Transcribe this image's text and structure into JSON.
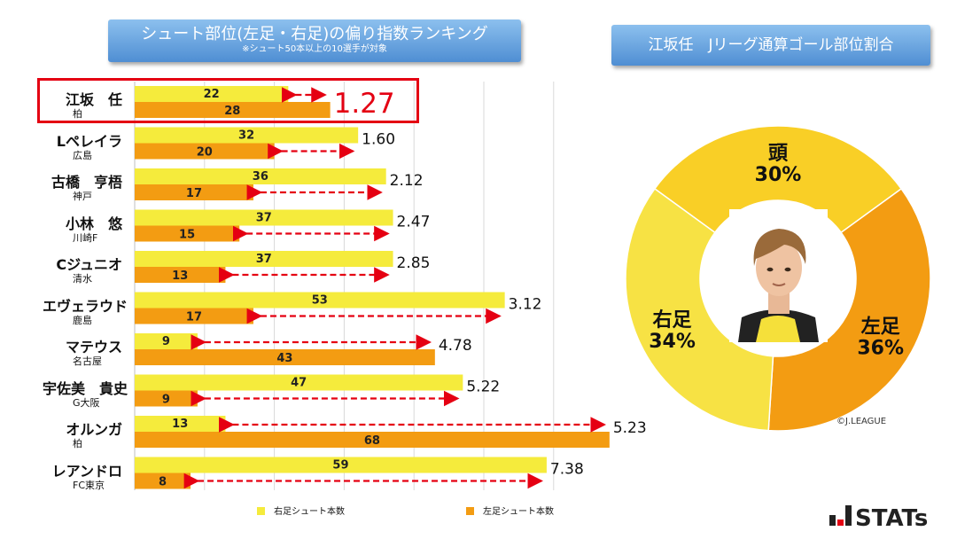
{
  "left_banner": {
    "title": "シュート部位(左足・右足)の偏り指数ランキング",
    "subtitle": "※シュート50本以上の10選手が対象"
  },
  "right_banner": {
    "title": "江坂任　Jリーグ通算ゴール部位割合"
  },
  "colors": {
    "right_foot": "#f5eb3c",
    "left_foot": "#f39c12",
    "arrow": "#e50012",
    "highlight": "#e40012",
    "donut_head": "#f9cf26",
    "donut_left": "#f39c12",
    "donut_right": "#f7e244"
  },
  "chart_data": [
    {
      "type": "bar",
      "orientation": "horizontal",
      "categories": [
        "江坂　任",
        "Lペレイラ",
        "古橋　亨梧",
        "小林　悠",
        "Cジュニオ",
        "エヴェラウド",
        "マテウス",
        "宇佐美　貴史",
        "オルンガ",
        "レアンドロ"
      ],
      "teams": [
        "柏",
        "広島",
        "神戸",
        "川崎F",
        "清水",
        "鹿島",
        "名古屋",
        "G大阪",
        "柏",
        "FC東京"
      ],
      "series": [
        {
          "name": "右足シュート本数",
          "values": [
            22,
            32,
            36,
            37,
            37,
            53,
            9,
            47,
            13,
            59
          ]
        },
        {
          "name": "左足シュート本数",
          "values": [
            28,
            20,
            17,
            15,
            13,
            17,
            43,
            9,
            68,
            8
          ]
        }
      ],
      "bias_index": [
        "1.27",
        "1.60",
        "2.12",
        "2.47",
        "2.85",
        "3.12",
        "4.78",
        "5.22",
        "5.23",
        "7.38"
      ],
      "highlighted_index": 0,
      "xlim": [
        0,
        70
      ],
      "grid": true,
      "legend_position": "bottom"
    },
    {
      "type": "pie",
      "style": "donut",
      "labels": [
        "頭",
        "左足",
        "右足"
      ],
      "values": [
        30,
        36,
        34
      ],
      "value_labels": [
        "30%",
        "36%",
        "34%"
      ]
    }
  ],
  "credit": "©J.LEAGUE",
  "logo_text": "STATs"
}
